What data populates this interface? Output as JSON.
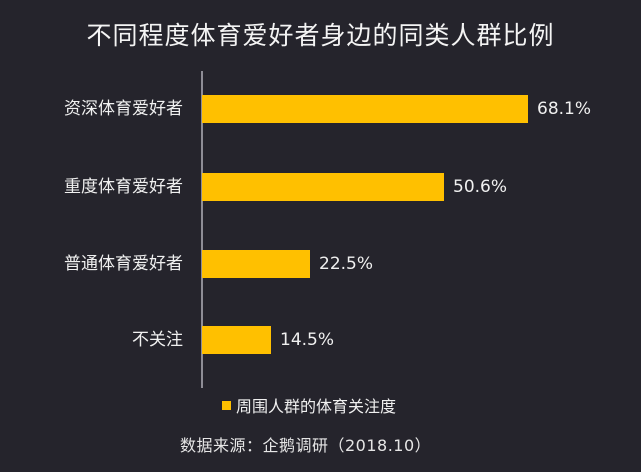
{
  "chart_data": {
    "type": "bar",
    "orientation": "horizontal",
    "title": "不同程度体育爱好者身边的同类人群比例",
    "categories": [
      "资深体育爱好者",
      "重度体育爱好者",
      "普通体育爱好者",
      "不关注"
    ],
    "series": [
      {
        "name": "周围人群的体育关注度",
        "values": [
          68.1,
          50.6,
          22.5,
          14.5
        ],
        "labels": [
          "68.1%",
          "50.6%",
          "22.5%",
          "14.5%"
        ],
        "color": "#ffc000"
      }
    ],
    "xlabel": "",
    "ylabel": "",
    "xlim": [
      0,
      80
    ],
    "grid": false,
    "legend_position": "bottom"
  },
  "title": "不同程度体育爱好者身边的同类人群比例",
  "rows": [
    {
      "label": "资深体育爱好者",
      "value": 68.1,
      "value_label": "68.1%"
    },
    {
      "label": "重度体育爱好者",
      "value": 50.6,
      "value_label": "50.6%"
    },
    {
      "label": "普通体育爱好者",
      "value": 22.5,
      "value_label": "22.5%"
    },
    {
      "label": "不关注",
      "value": 14.5,
      "value_label": "14.5%"
    }
  ],
  "legend": {
    "label": "周围人群的体育关注度",
    "color": "#ffc000"
  },
  "source": "数据来源：企鹅调研（2018.10）",
  "colors": {
    "background": "#25242c",
    "bar": "#ffc000",
    "axis": "#8e8d96",
    "text": "#f0f0f0"
  }
}
